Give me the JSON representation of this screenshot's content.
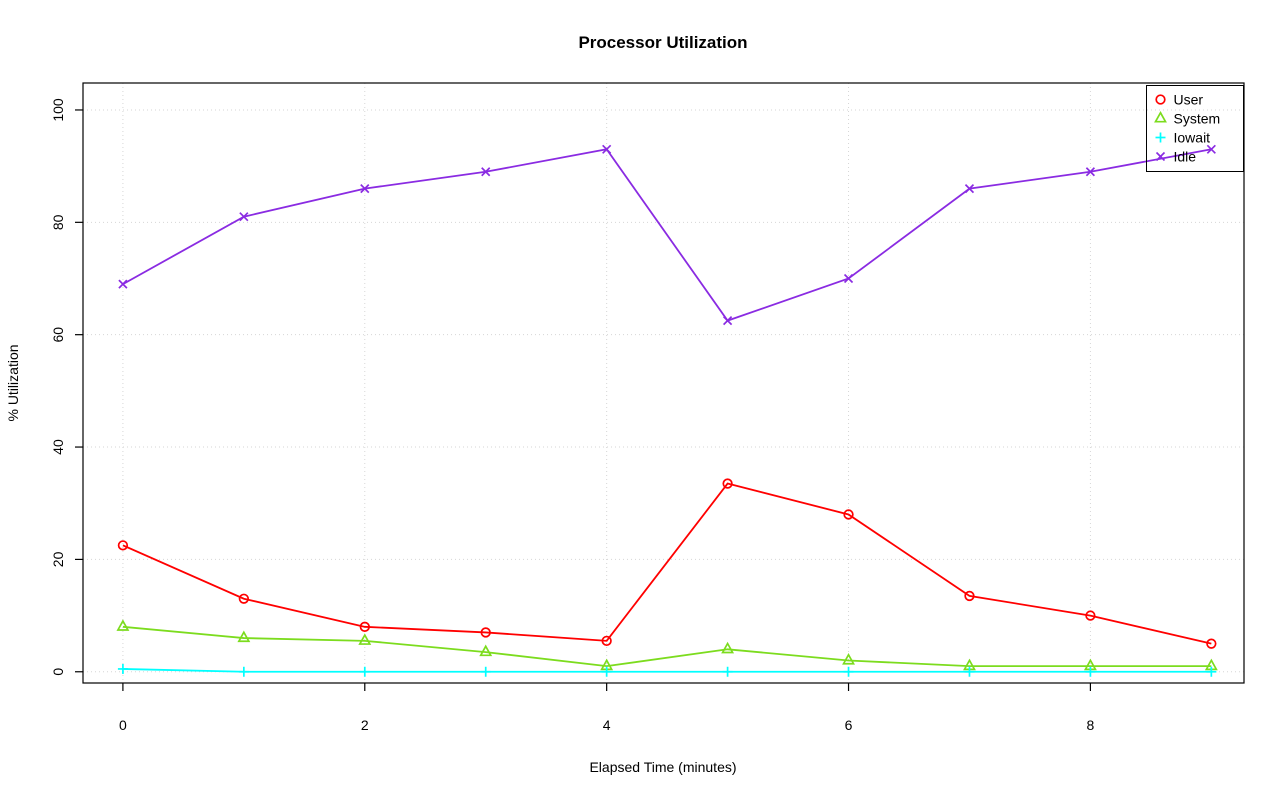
{
  "chart_data": {
    "type": "line",
    "title": "Processor Utilization",
    "xlabel": "Elapsed Time (minutes)",
    "ylabel": "% Utilization",
    "x": [
      0,
      1,
      2,
      3,
      4,
      5,
      6,
      7,
      8,
      9
    ],
    "xticks": [
      0,
      2,
      4,
      6,
      8
    ],
    "yticks": [
      0,
      20,
      40,
      60,
      80,
      100
    ],
    "xlim": [
      -0.33,
      9.27
    ],
    "ylim": [
      -2,
      104.8
    ],
    "grid": true,
    "grid_style": "dotted",
    "grid_color": "#d6d6d6",
    "legend_position": "top-right",
    "series": [
      {
        "name": "User",
        "color": "#ff0000",
        "marker": "circle",
        "values": [
          22.5,
          13,
          8,
          7,
          5.5,
          33.5,
          28,
          13.5,
          10,
          5
        ]
      },
      {
        "name": "System",
        "color": "#7cdc1e",
        "marker": "triangle",
        "values": [
          8,
          6,
          5.5,
          3.5,
          1,
          4,
          2,
          1,
          1,
          1
        ]
      },
      {
        "name": "Iowait",
        "color": "#00ffff",
        "marker": "plus",
        "values": [
          0.5,
          0,
          0,
          0,
          0,
          0,
          0,
          0,
          0,
          0
        ]
      },
      {
        "name": "Idle",
        "color": "#8a2be2",
        "marker": "x",
        "values": [
          69,
          81,
          86,
          89,
          93,
          62.5,
          70,
          86,
          89,
          93
        ]
      }
    ]
  }
}
